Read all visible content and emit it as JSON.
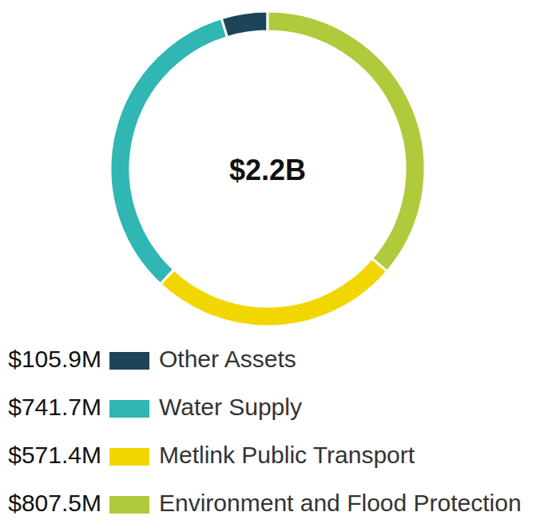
{
  "chart_data": {
    "type": "donut",
    "center_text": "$2.2B",
    "categories": [
      "Other Assets",
      "Water Supply",
      "Metlink Public Transport",
      "Environment and Flood Protection"
    ],
    "values": [
      105.9,
      741.7,
      571.4,
      807.5
    ],
    "value_labels": [
      "$105.9M",
      "$741.7M",
      "$571.4M",
      "$807.5M"
    ],
    "colors": [
      "#1c4557",
      "#30b6b3",
      "#f2d600",
      "#afca3b"
    ],
    "legend": "bottom"
  }
}
